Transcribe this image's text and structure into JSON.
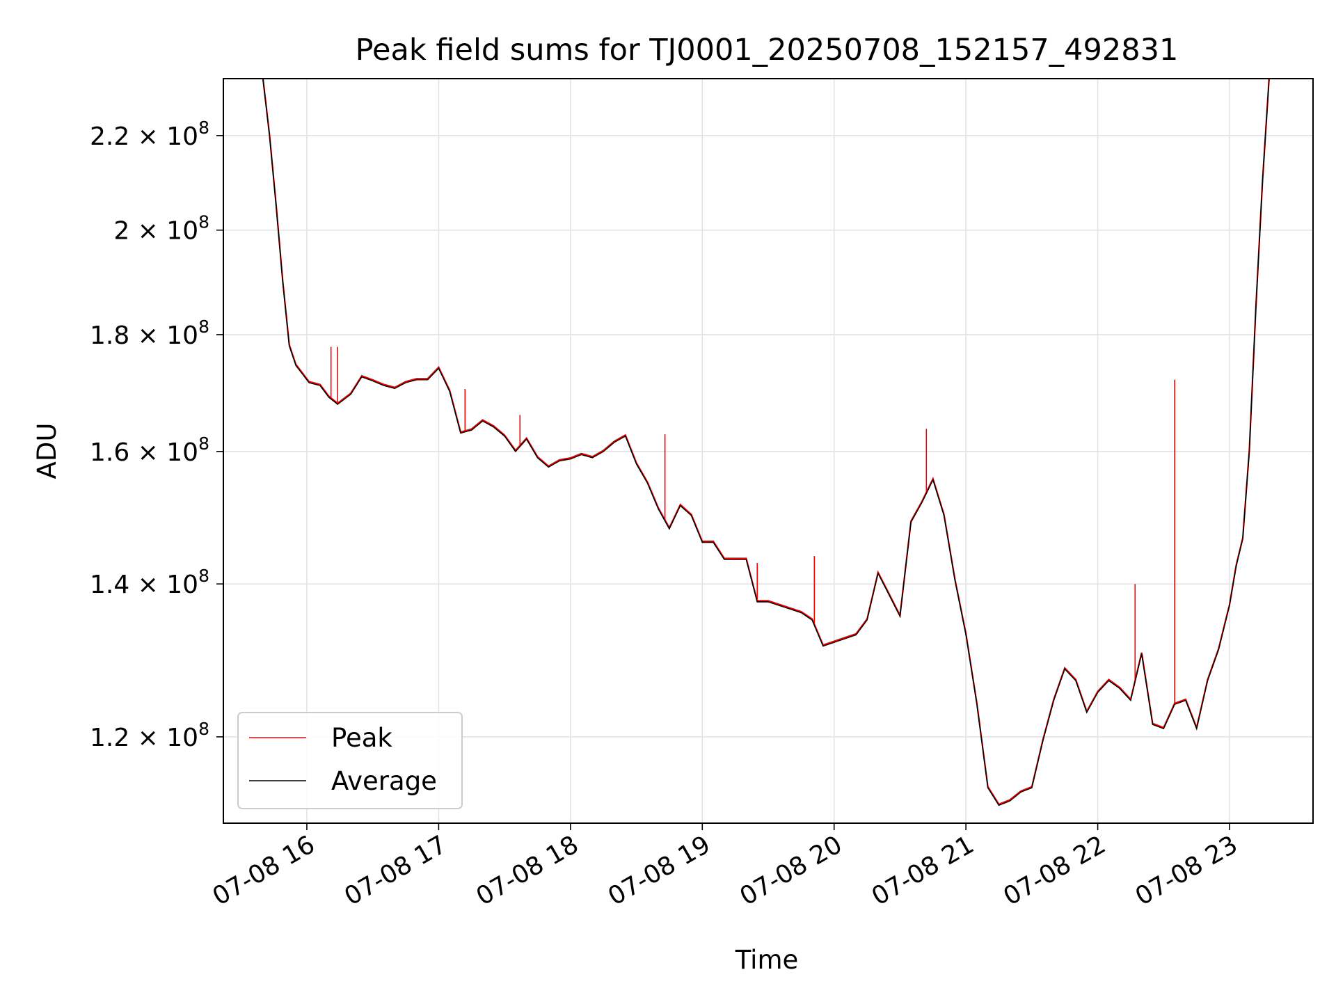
{
  "chart_data": {
    "type": "line",
    "title": "Peak field sums for TJ0001_20250708_152157_492831",
    "xlabel": "Time",
    "ylabel": "ADU",
    "y_scale": "log",
    "xlim": [
      "2025-07-08T15:22",
      "2025-07-08T23:38"
    ],
    "ylim": [
      110000000,
      233000000
    ],
    "grid": true,
    "legend_position": "lower-left",
    "x_ticks": [
      "07-08 16",
      "07-08 17",
      "07-08 18",
      "07-08 19",
      "07-08 20",
      "07-08 21",
      "07-08 22",
      "07-08 23"
    ],
    "y_ticks": [
      {
        "value": 120000000,
        "mantissa": "1.2",
        "base": "10",
        "exp": "8"
      },
      {
        "value": 140000000,
        "mantissa": "1.4",
        "base": "10",
        "exp": "8"
      },
      {
        "value": 160000000,
        "mantissa": "1.6",
        "base": "10",
        "exp": "8"
      },
      {
        "value": 180000000,
        "mantissa": "1.8",
        "base": "10",
        "exp": "8"
      },
      {
        "value": 200000000,
        "mantissa": "2",
        "base": "10",
        "exp": "8"
      },
      {
        "value": 220000000,
        "mantissa": "2.2",
        "base": "10",
        "exp": "8"
      }
    ],
    "series": [
      {
        "name": "Average",
        "color": "#000000",
        "x": [
          "2025-07-08T15:40",
          "2025-07-08T15:43",
          "2025-07-08T15:46",
          "2025-07-08T15:49",
          "2025-07-08T15:52",
          "2025-07-08T15:55",
          "2025-07-08T15:58",
          "2025-07-08T16:01",
          "2025-07-08T16:06",
          "2025-07-08T16:10",
          "2025-07-08T16:14",
          "2025-07-08T16:20",
          "2025-07-08T16:25",
          "2025-07-08T16:30",
          "2025-07-08T16:35",
          "2025-07-08T16:40",
          "2025-07-08T16:45",
          "2025-07-08T16:50",
          "2025-07-08T16:55",
          "2025-07-08T17:00",
          "2025-07-08T17:05",
          "2025-07-08T17:10",
          "2025-07-08T17:15",
          "2025-07-08T17:20",
          "2025-07-08T17:25",
          "2025-07-08T17:30",
          "2025-07-08T17:35",
          "2025-07-08T17:40",
          "2025-07-08T17:45",
          "2025-07-08T17:50",
          "2025-07-08T17:55",
          "2025-07-08T18:00",
          "2025-07-08T18:05",
          "2025-07-08T18:10",
          "2025-07-08T18:15",
          "2025-07-08T18:20",
          "2025-07-08T18:25",
          "2025-07-08T18:30",
          "2025-07-08T18:35",
          "2025-07-08T18:40",
          "2025-07-08T18:45",
          "2025-07-08T18:50",
          "2025-07-08T18:55",
          "2025-07-08T19:00",
          "2025-07-08T19:05",
          "2025-07-08T19:10",
          "2025-07-08T19:15",
          "2025-07-08T19:20",
          "2025-07-08T19:25",
          "2025-07-08T19:30",
          "2025-07-08T19:35",
          "2025-07-08T19:40",
          "2025-07-08T19:45",
          "2025-07-08T19:50",
          "2025-07-08T19:55",
          "2025-07-08T20:00",
          "2025-07-08T20:05",
          "2025-07-08T20:10",
          "2025-07-08T20:15",
          "2025-07-08T20:20",
          "2025-07-08T20:25",
          "2025-07-08T20:30",
          "2025-07-08T20:35",
          "2025-07-08T20:40",
          "2025-07-08T20:45",
          "2025-07-08T20:50",
          "2025-07-08T20:55",
          "2025-07-08T21:00",
          "2025-07-08T21:05",
          "2025-07-08T21:10",
          "2025-07-08T21:15",
          "2025-07-08T21:20",
          "2025-07-08T21:25",
          "2025-07-08T21:30",
          "2025-07-08T21:35",
          "2025-07-08T21:40",
          "2025-07-08T21:45",
          "2025-07-08T21:50",
          "2025-07-08T21:55",
          "2025-07-08T22:00",
          "2025-07-08T22:05",
          "2025-07-08T22:10",
          "2025-07-08T22:15",
          "2025-07-08T22:20",
          "2025-07-08T22:25",
          "2025-07-08T22:30",
          "2025-07-08T22:35",
          "2025-07-08T22:40",
          "2025-07-08T22:45",
          "2025-07-08T22:50",
          "2025-07-08T22:55",
          "2025-07-08T23:00",
          "2025-07-08T23:03",
          "2025-07-08T23:06",
          "2025-07-08T23:09",
          "2025-07-08T23:12",
          "2025-07-08T23:15",
          "2025-07-08T23:18"
        ],
        "values": [
          233000000,
          220000000,
          205000000,
          190000000,
          178000000,
          174500000,
          173000000,
          171500000,
          171000000,
          169000000,
          167800000,
          169500000,
          172500000,
          171800000,
          171000000,
          170500000,
          171500000,
          172000000,
          172000000,
          174000000,
          170000000,
          163000000,
          163500000,
          165000000,
          164000000,
          162500000,
          160000000,
          162000000,
          159000000,
          157500000,
          158500000,
          158800000,
          159500000,
          159000000,
          160000000,
          161500000,
          162500000,
          158000000,
          155000000,
          151000000,
          148000000,
          151500000,
          150000000,
          146000000,
          146000000,
          143500000,
          143500000,
          143500000,
          137500000,
          137500000,
          137000000,
          136500000,
          136000000,
          135000000,
          131500000,
          132000000,
          132500000,
          133000000,
          135000000,
          141500000,
          138500000,
          135500000,
          149000000,
          152000000,
          155500000,
          150000000,
          140500000,
          133000000,
          124000000,
          114000000,
          112000000,
          112500000,
          113500000,
          114000000,
          119500000,
          124500000,
          128500000,
          127000000,
          123000000,
          125500000,
          127000000,
          126000000,
          124500000,
          130500000,
          121500000,
          121000000,
          124000000,
          124500000,
          121000000,
          127000000,
          131000000,
          137000000,
          142500000,
          146500000,
          160000000,
          185000000,
          210000000,
          233000000
        ]
      },
      {
        "name": "Peak",
        "color": "#ff0000",
        "spikes": [
          {
            "x": "2025-07-08T16:11",
            "value": 177800000
          },
          {
            "x": "2025-07-08T16:14",
            "value": 177800000
          },
          {
            "x": "2025-07-08T17:12",
            "value": 170400000
          },
          {
            "x": "2025-07-08T17:37",
            "value": 166000000
          },
          {
            "x": "2025-07-08T18:43",
            "value": 162800000
          },
          {
            "x": "2025-07-08T19:25",
            "value": 143000000
          },
          {
            "x": "2025-07-08T19:51",
            "value": 144000000
          },
          {
            "x": "2025-07-08T20:42",
            "value": 163700000
          },
          {
            "x": "2025-07-08T22:17",
            "value": 140000000
          },
          {
            "x": "2025-07-08T22:35",
            "value": 172000000
          }
        ]
      }
    ]
  }
}
